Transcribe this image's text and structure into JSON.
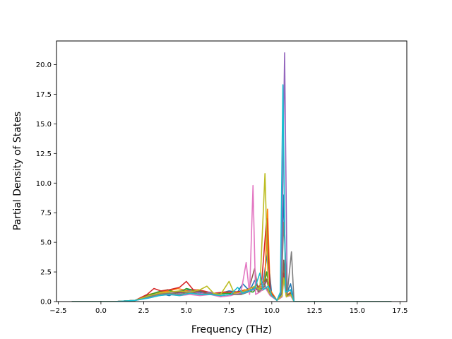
{
  "chart_data": {
    "type": "line",
    "title": "",
    "xlabel": "Frequency (THz)",
    "ylabel": "Partial Density of States",
    "xlim": [
      -2.6,
      17.9
    ],
    "ylim": [
      0,
      22.0
    ],
    "xticks": [
      -2.5,
      0.0,
      2.5,
      5.0,
      7.5,
      10.0,
      12.5,
      15.0,
      17.5
    ],
    "xtick_labels": [
      "−2.5",
      "0.0",
      "2.5",
      "5.0",
      "7.5",
      "10.0",
      "12.5",
      "15.0",
      "17.5"
    ],
    "yticks": [
      0.0,
      2.5,
      5.0,
      7.5,
      10.0,
      12.5,
      15.0,
      17.5,
      20.0
    ],
    "ytick_labels": [
      "0.0",
      "2.5",
      "5.0",
      "7.5",
      "10.0",
      "12.5",
      "15.0",
      "17.5",
      "20.0"
    ],
    "grid": false,
    "legend": "none",
    "series": [
      {
        "color": "#1f77b4",
        "points": [
          [
            -1.7,
            0
          ],
          [
            0.8,
            0
          ],
          [
            2.0,
            0.1
          ],
          [
            2.8,
            0.4
          ],
          [
            3.4,
            0.7
          ],
          [
            4.0,
            0.5
          ],
          [
            4.6,
            0.9
          ],
          [
            5.2,
            1.0
          ],
          [
            5.8,
            0.8
          ],
          [
            6.4,
            0.6
          ],
          [
            7.0,
            0.7
          ],
          [
            7.5,
            0.9
          ],
          [
            8.0,
            0.8
          ],
          [
            8.3,
            1.5
          ],
          [
            8.7,
            0.9
          ],
          [
            9.0,
            1.8
          ],
          [
            9.2,
            1.2
          ],
          [
            9.5,
            1.7
          ],
          [
            9.75,
            4.2
          ],
          [
            10.0,
            0.5
          ],
          [
            10.3,
            0.1
          ],
          [
            10.55,
            0.6
          ],
          [
            10.7,
            9.0
          ],
          [
            10.85,
            0.6
          ],
          [
            11.1,
            1.5
          ],
          [
            11.3,
            0
          ],
          [
            17.0,
            0
          ]
        ]
      },
      {
        "color": "#ff7f0e",
        "points": [
          [
            -1.7,
            0
          ],
          [
            0.8,
            0
          ],
          [
            2.0,
            0.1
          ],
          [
            2.8,
            0.6
          ],
          [
            3.4,
            0.8
          ],
          [
            4.0,
            0.9
          ],
          [
            4.5,
            1.1
          ],
          [
            5.1,
            0.9
          ],
          [
            5.7,
            1.0
          ],
          [
            6.3,
            0.7
          ],
          [
            6.9,
            0.6
          ],
          [
            7.4,
            0.8
          ],
          [
            7.9,
            0.7
          ],
          [
            8.4,
            1.0
          ],
          [
            8.8,
            0.9
          ],
          [
            9.1,
            1.4
          ],
          [
            9.4,
            1.1
          ],
          [
            9.6,
            2.0
          ],
          [
            9.75,
            7.8
          ],
          [
            9.9,
            1.0
          ],
          [
            10.3,
            0.1
          ],
          [
            10.6,
            0.5
          ],
          [
            10.7,
            3.0
          ],
          [
            10.85,
            0.5
          ],
          [
            11.1,
            0.8
          ],
          [
            11.3,
            0
          ],
          [
            17.0,
            0
          ]
        ]
      },
      {
        "color": "#2ca02c",
        "points": [
          [
            -1.7,
            0
          ],
          [
            0.8,
            0
          ],
          [
            2.0,
            0.1
          ],
          [
            2.7,
            0.5
          ],
          [
            3.3,
            0.8
          ],
          [
            3.9,
            1.0
          ],
          [
            4.5,
            0.7
          ],
          [
            5.0,
            1.1
          ],
          [
            5.6,
            0.9
          ],
          [
            6.2,
            0.8
          ],
          [
            6.8,
            0.6
          ],
          [
            7.4,
            0.7
          ],
          [
            8.0,
            0.6
          ],
          [
            8.5,
            0.9
          ],
          [
            8.9,
            0.8
          ],
          [
            9.2,
            1.2
          ],
          [
            9.5,
            1.0
          ],
          [
            9.7,
            2.5
          ],
          [
            9.9,
            0.8
          ],
          [
            10.3,
            0.1
          ],
          [
            10.6,
            0.4
          ],
          [
            10.7,
            2.2
          ],
          [
            10.85,
            0.4
          ],
          [
            11.1,
            0.6
          ],
          [
            11.3,
            0
          ],
          [
            17.0,
            0
          ]
        ]
      },
      {
        "color": "#d62728",
        "points": [
          [
            -1.7,
            0
          ],
          [
            0.8,
            0
          ],
          [
            2.0,
            0.1
          ],
          [
            2.7,
            0.6
          ],
          [
            3.1,
            1.1
          ],
          [
            3.5,
            0.9
          ],
          [
            4.0,
            1.0
          ],
          [
            4.6,
            1.2
          ],
          [
            5.0,
            1.7
          ],
          [
            5.4,
            1.0
          ],
          [
            6.0,
            0.9
          ],
          [
            6.6,
            0.7
          ],
          [
            7.2,
            0.8
          ],
          [
            7.8,
            0.8
          ],
          [
            8.4,
            0.9
          ],
          [
            8.8,
            1.2
          ],
          [
            9.1,
            1.0
          ],
          [
            9.4,
            1.5
          ],
          [
            9.7,
            7.0
          ],
          [
            9.9,
            0.8
          ],
          [
            10.3,
            0.1
          ],
          [
            10.6,
            0.5
          ],
          [
            10.7,
            2.4
          ],
          [
            10.85,
            0.4
          ],
          [
            11.1,
            0.7
          ],
          [
            11.3,
            0
          ],
          [
            17.0,
            0
          ]
        ]
      },
      {
        "color": "#9467bd",
        "points": [
          [
            -1.7,
            0
          ],
          [
            0.8,
            0
          ],
          [
            2.0,
            0.1
          ],
          [
            2.8,
            0.4
          ],
          [
            3.4,
            0.6
          ],
          [
            4.0,
            0.8
          ],
          [
            4.6,
            0.7
          ],
          [
            5.2,
            0.9
          ],
          [
            5.8,
            0.7
          ],
          [
            6.4,
            0.8
          ],
          [
            7.0,
            0.5
          ],
          [
            7.6,
            0.6
          ],
          [
            8.2,
            0.7
          ],
          [
            8.6,
            0.9
          ],
          [
            9.0,
            1.0
          ],
          [
            9.4,
            1.3
          ],
          [
            9.7,
            1.8
          ],
          [
            9.9,
            0.6
          ],
          [
            10.3,
            0.1
          ],
          [
            10.55,
            0.8
          ],
          [
            10.75,
            21.0
          ],
          [
            10.9,
            0.8
          ],
          [
            11.1,
            1.0
          ],
          [
            11.3,
            0
          ],
          [
            17.0,
            0
          ]
        ]
      },
      {
        "color": "#8c564b",
        "points": [
          [
            -1.7,
            0
          ],
          [
            0.8,
            0
          ],
          [
            2.0,
            0.1
          ],
          [
            2.8,
            0.5
          ],
          [
            3.4,
            0.7
          ],
          [
            4.0,
            0.6
          ],
          [
            4.6,
            0.8
          ],
          [
            5.2,
            0.7
          ],
          [
            5.8,
            0.9
          ],
          [
            6.4,
            0.6
          ],
          [
            7.0,
            0.5
          ],
          [
            7.6,
            0.6
          ],
          [
            8.2,
            0.6
          ],
          [
            8.6,
            0.8
          ],
          [
            9.0,
            2.8
          ],
          [
            9.2,
            0.8
          ],
          [
            9.5,
            1.0
          ],
          [
            9.7,
            1.9
          ],
          [
            9.9,
            0.6
          ],
          [
            10.3,
            0.1
          ],
          [
            10.6,
            0.5
          ],
          [
            10.7,
            3.5
          ],
          [
            10.85,
            0.5
          ],
          [
            11.1,
            0.7
          ],
          [
            11.3,
            0
          ],
          [
            17.0,
            0
          ]
        ]
      },
      {
        "color": "#e377c2",
        "points": [
          [
            -1.7,
            0
          ],
          [
            0.8,
            0
          ],
          [
            2.0,
            0.1
          ],
          [
            2.8,
            0.3
          ],
          [
            3.4,
            0.5
          ],
          [
            4.0,
            0.6
          ],
          [
            4.6,
            0.5
          ],
          [
            5.2,
            0.6
          ],
          [
            5.8,
            0.5
          ],
          [
            6.4,
            0.6
          ],
          [
            7.0,
            0.4
          ],
          [
            7.6,
            0.5
          ],
          [
            8.2,
            0.8
          ],
          [
            8.5,
            3.3
          ],
          [
            8.7,
            0.6
          ],
          [
            8.9,
            9.8
          ],
          [
            9.05,
            0.6
          ],
          [
            9.3,
            0.8
          ],
          [
            9.6,
            1.2
          ],
          [
            9.9,
            0.5
          ],
          [
            10.3,
            0.1
          ],
          [
            10.6,
            0.4
          ],
          [
            10.7,
            1.8
          ],
          [
            10.85,
            0.4
          ],
          [
            11.1,
            0.5
          ],
          [
            11.3,
            0
          ],
          [
            17.0,
            0
          ]
        ]
      },
      {
        "color": "#7f7f7f",
        "points": [
          [
            -1.7,
            0
          ],
          [
            0.8,
            0
          ],
          [
            2.0,
            0.1
          ],
          [
            2.8,
            0.4
          ],
          [
            3.4,
            0.6
          ],
          [
            4.0,
            0.7
          ],
          [
            4.6,
            0.6
          ],
          [
            5.2,
            0.8
          ],
          [
            5.8,
            0.6
          ],
          [
            6.4,
            0.7
          ],
          [
            7.0,
            0.5
          ],
          [
            7.6,
            0.6
          ],
          [
            8.2,
            0.6
          ],
          [
            8.6,
            0.8
          ],
          [
            9.0,
            1.2
          ],
          [
            9.3,
            0.9
          ],
          [
            9.6,
            1.4
          ],
          [
            9.9,
            0.6
          ],
          [
            10.3,
            0.1
          ],
          [
            10.55,
            0.8
          ],
          [
            10.7,
            6.7
          ],
          [
            10.9,
            0.6
          ],
          [
            11.15,
            4.2
          ],
          [
            11.3,
            0
          ],
          [
            17.0,
            0
          ]
        ]
      },
      {
        "color": "#bcbd22",
        "points": [
          [
            -1.7,
            0
          ],
          [
            0.8,
            0
          ],
          [
            2.0,
            0.1
          ],
          [
            2.8,
            0.5
          ],
          [
            3.4,
            0.7
          ],
          [
            4.0,
            0.8
          ],
          [
            4.6,
            0.9
          ],
          [
            5.2,
            0.8
          ],
          [
            5.8,
            1.0
          ],
          [
            6.2,
            1.3
          ],
          [
            6.6,
            0.7
          ],
          [
            7.0,
            0.6
          ],
          [
            7.5,
            1.7
          ],
          [
            7.8,
            0.7
          ],
          [
            8.2,
            0.8
          ],
          [
            8.6,
            1.0
          ],
          [
            9.0,
            1.3
          ],
          [
            9.3,
            1.0
          ],
          [
            9.6,
            10.8
          ],
          [
            9.8,
            0.8
          ],
          [
            10.3,
            0.1
          ],
          [
            10.6,
            0.5
          ],
          [
            10.7,
            2.0
          ],
          [
            10.85,
            0.4
          ],
          [
            11.1,
            0.6
          ],
          [
            11.3,
            0
          ],
          [
            17.0,
            0
          ]
        ]
      },
      {
        "color": "#17becf",
        "points": [
          [
            -1.7,
            0
          ],
          [
            0.8,
            0
          ],
          [
            2.0,
            0.1
          ],
          [
            2.8,
            0.3
          ],
          [
            3.4,
            0.5
          ],
          [
            4.0,
            0.6
          ],
          [
            4.6,
            0.5
          ],
          [
            5.2,
            0.7
          ],
          [
            5.8,
            0.6
          ],
          [
            6.4,
            0.6
          ],
          [
            7.0,
            0.5
          ],
          [
            7.6,
            0.6
          ],
          [
            8.0,
            1.2
          ],
          [
            8.3,
            0.7
          ],
          [
            8.7,
            0.9
          ],
          [
            9.0,
            1.1
          ],
          [
            9.3,
            2.4
          ],
          [
            9.5,
            1.0
          ],
          [
            9.8,
            1.3
          ],
          [
            10.0,
            0.5
          ],
          [
            10.3,
            0.1
          ],
          [
            10.5,
            0.8
          ],
          [
            10.65,
            18.3
          ],
          [
            10.8,
            0.8
          ],
          [
            11.1,
            1.0
          ],
          [
            11.3,
            0
          ],
          [
            17.0,
            0
          ]
        ]
      }
    ]
  }
}
